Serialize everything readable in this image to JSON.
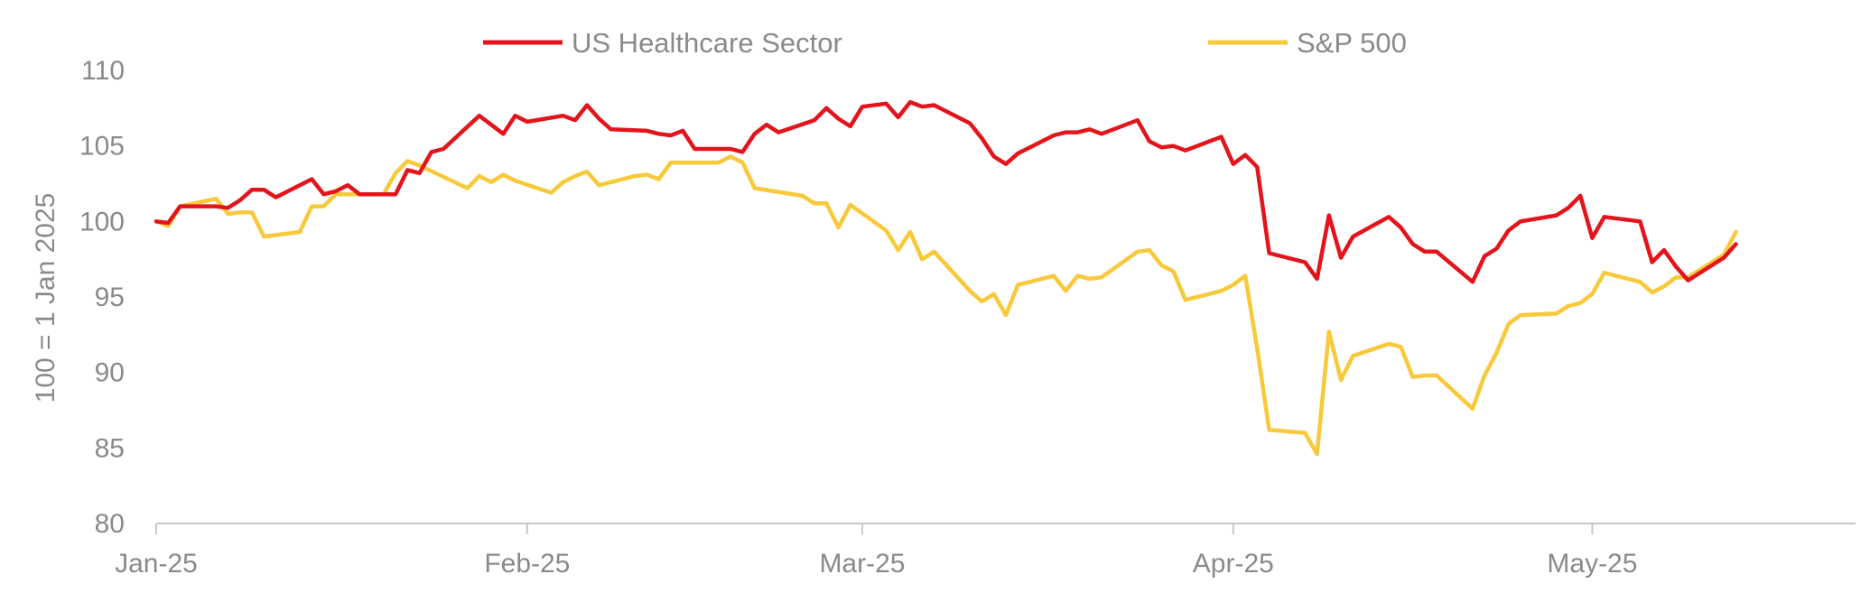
{
  "chart_data": {
    "type": "line",
    "title": "",
    "xlabel": "",
    "ylabel": "100 = 1 Jan 2025",
    "ylim": [
      80,
      110
    ],
    "yticks": [
      80,
      85,
      90,
      95,
      100,
      105,
      110
    ],
    "xlim": [
      "2025-01-01",
      "2025-05-23"
    ],
    "xticks": [
      {
        "date": "2025-01-01",
        "label": "Jan-25"
      },
      {
        "date": "2025-02-01",
        "label": "Feb-25"
      },
      {
        "date": "2025-03-01",
        "label": "Mar-25"
      },
      {
        "date": "2025-04-01",
        "label": "Apr-25"
      },
      {
        "date": "2025-05-01",
        "label": "May-25"
      }
    ],
    "grid": false,
    "legend_position": "top",
    "series": [
      {
        "name": "US Healthcare Sector",
        "color": "#e3141b",
        "points": [
          [
            "2025-01-01",
            100.0
          ],
          [
            "2025-01-02",
            99.9
          ],
          [
            "2025-01-03",
            101.0
          ],
          [
            "2025-01-06",
            101.0
          ],
          [
            "2025-01-07",
            100.9
          ],
          [
            "2025-01-08",
            101.4
          ],
          [
            "2025-01-09",
            102.1
          ],
          [
            "2025-01-10",
            102.1
          ],
          [
            "2025-01-11",
            101.6
          ],
          [
            "2025-01-14",
            102.8
          ],
          [
            "2025-01-15",
            101.8
          ],
          [
            "2025-01-16",
            102.0
          ],
          [
            "2025-01-17",
            102.4
          ],
          [
            "2025-01-18",
            101.8
          ],
          [
            "2025-01-21",
            101.8
          ],
          [
            "2025-01-22",
            103.4
          ],
          [
            "2025-01-23",
            103.2
          ],
          [
            "2025-01-24",
            104.6
          ],
          [
            "2025-01-25",
            104.8
          ],
          [
            "2025-01-28",
            107.0
          ],
          [
            "2025-01-30",
            105.8
          ],
          [
            "2025-01-31",
            107.0
          ],
          [
            "2025-02-01",
            106.6
          ],
          [
            "2025-02-04",
            107.0
          ],
          [
            "2025-02-05",
            106.7
          ],
          [
            "2025-02-06",
            107.7
          ],
          [
            "2025-02-07",
            106.8
          ],
          [
            "2025-02-08",
            106.1
          ],
          [
            "2025-02-11",
            106.0
          ],
          [
            "2025-02-12",
            105.8
          ],
          [
            "2025-02-13",
            105.7
          ],
          [
            "2025-02-14",
            106.0
          ],
          [
            "2025-02-15",
            104.8
          ],
          [
            "2025-02-18",
            104.8
          ],
          [
            "2025-02-19",
            104.6
          ],
          [
            "2025-02-20",
            105.8
          ],
          [
            "2025-02-21",
            106.4
          ],
          [
            "2025-02-22",
            105.9
          ],
          [
            "2025-02-25",
            106.7
          ],
          [
            "2025-02-26",
            107.5
          ],
          [
            "2025-02-27",
            106.8
          ],
          [
            "2025-02-28",
            106.3
          ],
          [
            "2025-03-01",
            107.6
          ],
          [
            "2025-03-03",
            107.8
          ],
          [
            "2025-03-04",
            106.9
          ],
          [
            "2025-03-05",
            107.9
          ],
          [
            "2025-03-06",
            107.6
          ],
          [
            "2025-03-07",
            107.7
          ],
          [
            "2025-03-10",
            106.5
          ],
          [
            "2025-03-11",
            105.5
          ],
          [
            "2025-03-12",
            104.3
          ],
          [
            "2025-03-13",
            103.8
          ],
          [
            "2025-03-14",
            104.5
          ],
          [
            "2025-03-17",
            105.7
          ],
          [
            "2025-03-18",
            105.9
          ],
          [
            "2025-03-19",
            105.9
          ],
          [
            "2025-03-20",
            106.1
          ],
          [
            "2025-03-21",
            105.8
          ],
          [
            "2025-03-24",
            106.7
          ],
          [
            "2025-03-25",
            105.3
          ],
          [
            "2025-03-26",
            104.9
          ],
          [
            "2025-03-27",
            105.0
          ],
          [
            "2025-03-28",
            104.7
          ],
          [
            "2025-03-31",
            105.6
          ],
          [
            "2025-04-01",
            103.8
          ],
          [
            "2025-04-02",
            104.4
          ],
          [
            "2025-04-03",
            103.6
          ],
          [
            "2025-04-04",
            97.9
          ],
          [
            "2025-04-07",
            97.3
          ],
          [
            "2025-04-08",
            96.2
          ],
          [
            "2025-04-09",
            100.4
          ],
          [
            "2025-04-10",
            97.6
          ],
          [
            "2025-04-11",
            99.0
          ],
          [
            "2025-04-14",
            100.3
          ],
          [
            "2025-04-15",
            99.6
          ],
          [
            "2025-04-16",
            98.5
          ],
          [
            "2025-04-17",
            98.0
          ],
          [
            "2025-04-18",
            98.0
          ],
          [
            "2025-04-21",
            96.0
          ],
          [
            "2025-04-22",
            97.7
          ],
          [
            "2025-04-23",
            98.2
          ],
          [
            "2025-04-24",
            99.4
          ],
          [
            "2025-04-25",
            100.0
          ],
          [
            "2025-04-28",
            100.4
          ],
          [
            "2025-04-29",
            100.9
          ],
          [
            "2025-04-30",
            101.7
          ],
          [
            "2025-05-01",
            98.9
          ],
          [
            "2025-05-02",
            100.3
          ],
          [
            "2025-05-05",
            100.0
          ],
          [
            "2025-05-06",
            97.3
          ],
          [
            "2025-05-07",
            98.1
          ],
          [
            "2025-05-08",
            97.0
          ],
          [
            "2025-05-09",
            96.1
          ],
          [
            "2025-05-12",
            97.6
          ],
          [
            "2025-05-13",
            98.5
          ]
        ]
      },
      {
        "name": "S&P 500",
        "color": "#f8c93a",
        "points": [
          [
            "2025-01-01",
            100.0
          ],
          [
            "2025-01-02",
            99.7
          ],
          [
            "2025-01-03",
            101.0
          ],
          [
            "2025-01-06",
            101.5
          ],
          [
            "2025-01-07",
            100.5
          ],
          [
            "2025-01-08",
            100.6
          ],
          [
            "2025-01-09",
            100.6
          ],
          [
            "2025-01-10",
            99.0
          ],
          [
            "2025-01-13",
            99.3
          ],
          [
            "2025-01-14",
            101.0
          ],
          [
            "2025-01-15",
            101.0
          ],
          [
            "2025-01-16",
            101.8
          ],
          [
            "2025-01-20",
            101.8
          ],
          [
            "2025-01-21",
            103.2
          ],
          [
            "2025-01-22",
            104.0
          ],
          [
            "2025-01-23",
            103.7
          ],
          [
            "2025-01-27",
            102.2
          ],
          [
            "2025-01-28",
            103.0
          ],
          [
            "2025-01-29",
            102.6
          ],
          [
            "2025-01-30",
            103.1
          ],
          [
            "2025-01-31",
            102.7
          ],
          [
            "2025-02-03",
            101.9
          ],
          [
            "2025-02-04",
            102.6
          ],
          [
            "2025-02-05",
            103.0
          ],
          [
            "2025-02-06",
            103.3
          ],
          [
            "2025-02-07",
            102.4
          ],
          [
            "2025-02-10",
            103.0
          ],
          [
            "2025-02-11",
            103.1
          ],
          [
            "2025-02-12",
            102.8
          ],
          [
            "2025-02-13",
            103.9
          ],
          [
            "2025-02-17",
            103.9
          ],
          [
            "2025-02-18",
            104.3
          ],
          [
            "2025-02-19",
            103.9
          ],
          [
            "2025-02-20",
            102.2
          ],
          [
            "2025-02-24",
            101.7
          ],
          [
            "2025-02-25",
            101.2
          ],
          [
            "2025-02-26",
            101.2
          ],
          [
            "2025-02-27",
            99.6
          ],
          [
            "2025-02-28",
            101.1
          ],
          [
            "2025-03-03",
            99.4
          ],
          [
            "2025-03-04",
            98.1
          ],
          [
            "2025-03-05",
            99.3
          ],
          [
            "2025-03-06",
            97.5
          ],
          [
            "2025-03-07",
            98.0
          ],
          [
            "2025-03-10",
            95.4
          ],
          [
            "2025-03-11",
            94.7
          ],
          [
            "2025-03-12",
            95.2
          ],
          [
            "2025-03-13",
            93.8
          ],
          [
            "2025-03-14",
            95.8
          ],
          [
            "2025-03-17",
            96.4
          ],
          [
            "2025-03-18",
            95.4
          ],
          [
            "2025-03-19",
            96.4
          ],
          [
            "2025-03-20",
            96.2
          ],
          [
            "2025-03-21",
            96.3
          ],
          [
            "2025-03-24",
            98.0
          ],
          [
            "2025-03-25",
            98.1
          ],
          [
            "2025-03-26",
            97.1
          ],
          [
            "2025-03-27",
            96.7
          ],
          [
            "2025-03-28",
            94.8
          ],
          [
            "2025-03-31",
            95.4
          ],
          [
            "2025-04-01",
            95.8
          ],
          [
            "2025-04-02",
            96.4
          ],
          [
            "2025-04-03",
            91.6
          ],
          [
            "2025-04-04",
            86.2
          ],
          [
            "2025-04-07",
            86.0
          ],
          [
            "2025-04-08",
            84.6
          ],
          [
            "2025-04-09",
            92.7
          ],
          [
            "2025-04-10",
            89.5
          ],
          [
            "2025-04-11",
            91.1
          ],
          [
            "2025-04-14",
            91.9
          ],
          [
            "2025-04-15",
            91.7
          ],
          [
            "2025-04-16",
            89.7
          ],
          [
            "2025-04-17",
            89.8
          ],
          [
            "2025-04-18",
            89.8
          ],
          [
            "2025-04-21",
            87.6
          ],
          [
            "2025-04-22",
            89.8
          ],
          [
            "2025-04-23",
            91.3
          ],
          [
            "2025-04-24",
            93.2
          ],
          [
            "2025-04-25",
            93.8
          ],
          [
            "2025-04-28",
            93.9
          ],
          [
            "2025-04-29",
            94.4
          ],
          [
            "2025-04-30",
            94.6
          ],
          [
            "2025-05-01",
            95.2
          ],
          [
            "2025-05-02",
            96.6
          ],
          [
            "2025-05-05",
            96.0
          ],
          [
            "2025-05-06",
            95.3
          ],
          [
            "2025-05-07",
            95.7
          ],
          [
            "2025-05-08",
            96.3
          ],
          [
            "2025-05-09",
            96.3
          ],
          [
            "2025-05-12",
            97.8
          ],
          [
            "2025-05-13",
            99.3
          ]
        ]
      }
    ]
  }
}
